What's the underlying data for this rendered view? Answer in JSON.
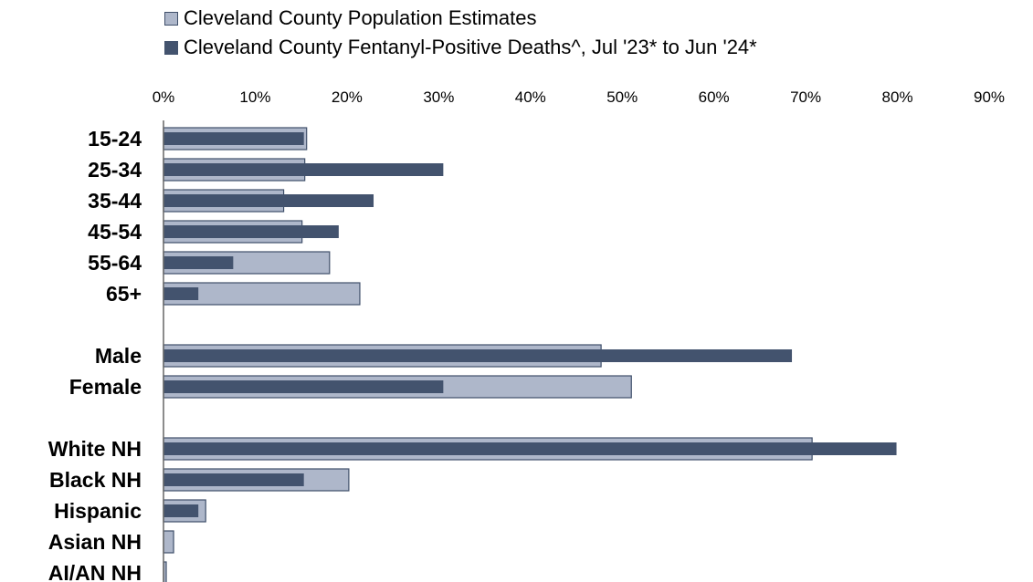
{
  "chart_data": {
    "type": "bar",
    "orientation": "horizontal",
    "categories": [
      "15-24",
      "25-34",
      "35-44",
      "45-54",
      "55-64",
      "65+",
      "Male",
      "Female",
      "White NH",
      "Black NH",
      "Hispanic",
      "Asian NH",
      "AI/AN NH"
    ],
    "groups": [
      [
        "15-24",
        "25-34",
        "35-44",
        "45-54",
        "55-64",
        "65+"
      ],
      [
        "Male",
        "Female"
      ],
      [
        "White NH",
        "Black NH",
        "Hispanic",
        "Asian NH",
        "AI/AN NH"
      ]
    ],
    "series": [
      {
        "name": "Cleveland County Population Estimates",
        "color": "#aeb7ca",
        "values": [
          15.6,
          15.4,
          13.1,
          15.1,
          18.1,
          21.4,
          47.7,
          51.0,
          70.7,
          20.2,
          4.6,
          1.1,
          0.3
        ]
      },
      {
        "name": "Cleveland County Fentanyl-Positive Deaths^, Jul '23* to Jun '24*",
        "color": "#43536e",
        "values": [
          15.3,
          30.5,
          22.9,
          19.1,
          7.6,
          3.8,
          68.5,
          30.5,
          79.9,
          15.3,
          3.8,
          0,
          0
        ]
      }
    ],
    "xlim": [
      0,
      90
    ],
    "xticks": [
      "0%",
      "10%",
      "20%",
      "30%",
      "40%",
      "50%",
      "60%",
      "70%",
      "80%",
      "90%"
    ],
    "xaxis_position": "top",
    "grid": false,
    "legend_position": "top"
  }
}
